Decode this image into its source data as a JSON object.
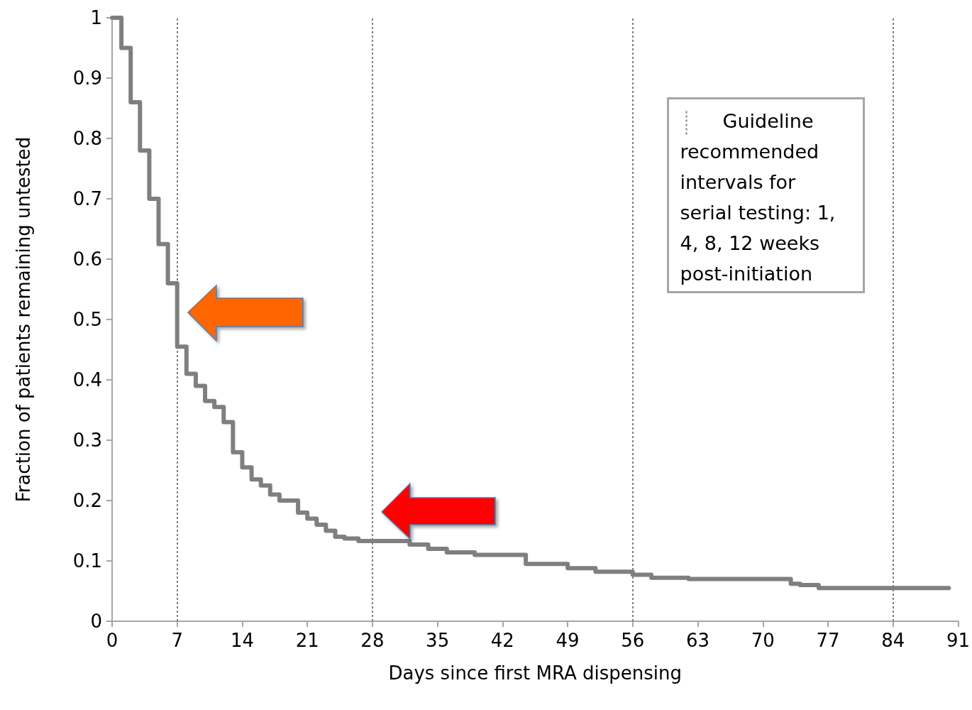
{
  "chart_data": {
    "type": "step",
    "xlabel": "Days since first MRA dispensing",
    "ylabel": "Fraction of patients remaining untested",
    "x": [
      0,
      1,
      2,
      3,
      4,
      5,
      6,
      7,
      8,
      9,
      10,
      11,
      12,
      13,
      14,
      15,
      16,
      17,
      18,
      20,
      21,
      22,
      23,
      24,
      25,
      26.5,
      32,
      34,
      36,
      39,
      44.5,
      49,
      52,
      56,
      58,
      62,
      73,
      74,
      76,
      90
    ],
    "series": [
      {
        "color": "#7f7f7f",
        "values": [
          1,
          0.95,
          0.86,
          0.78,
          0.7,
          0.625,
          0.56,
          0.455,
          0.41,
          0.39,
          0.365,
          0.355,
          0.33,
          0.28,
          0.255,
          0.235,
          0.225,
          0.21,
          0.2,
          0.18,
          0.17,
          0.16,
          0.15,
          0.14,
          0.137,
          0.133,
          0.127,
          0.12,
          0.114,
          0.11,
          0.095,
          0.088,
          0.082,
          0.077,
          0.072,
          0.07,
          0.062,
          0.06,
          0.055,
          0.055
        ]
      }
    ],
    "xlim": [
      0,
      91
    ],
    "xticks": [
      0,
      7,
      14,
      21,
      28,
      35,
      42,
      49,
      56,
      63,
      70,
      77,
      84,
      91
    ],
    "ylim": [
      0,
      1
    ],
    "yticks": [
      0,
      0.1,
      0.2,
      0.3,
      0.4,
      0.5,
      0.6,
      0.7,
      0.8,
      0.9,
      1
    ],
    "ref_lines": [
      {
        "axis": "x",
        "value": 7,
        "line_style": "dotted",
        "color": "#7f7f7f"
      },
      {
        "axis": "x",
        "value": 28,
        "line_style": "dotted",
        "color": "#7f7f7f"
      },
      {
        "axis": "x",
        "value": 56,
        "line_style": "dotted",
        "color": "#7f7f7f"
      },
      {
        "axis": "x",
        "value": 84,
        "line_style": "dotted",
        "color": "#7f7f7f"
      }
    ],
    "annotations": [
      "Guideline recommended intervals for serial testing: 1, 4, 8, 12 weeks post-initiation"
    ],
    "grid": false,
    "marker": "none",
    "line_style": "solid"
  }
}
